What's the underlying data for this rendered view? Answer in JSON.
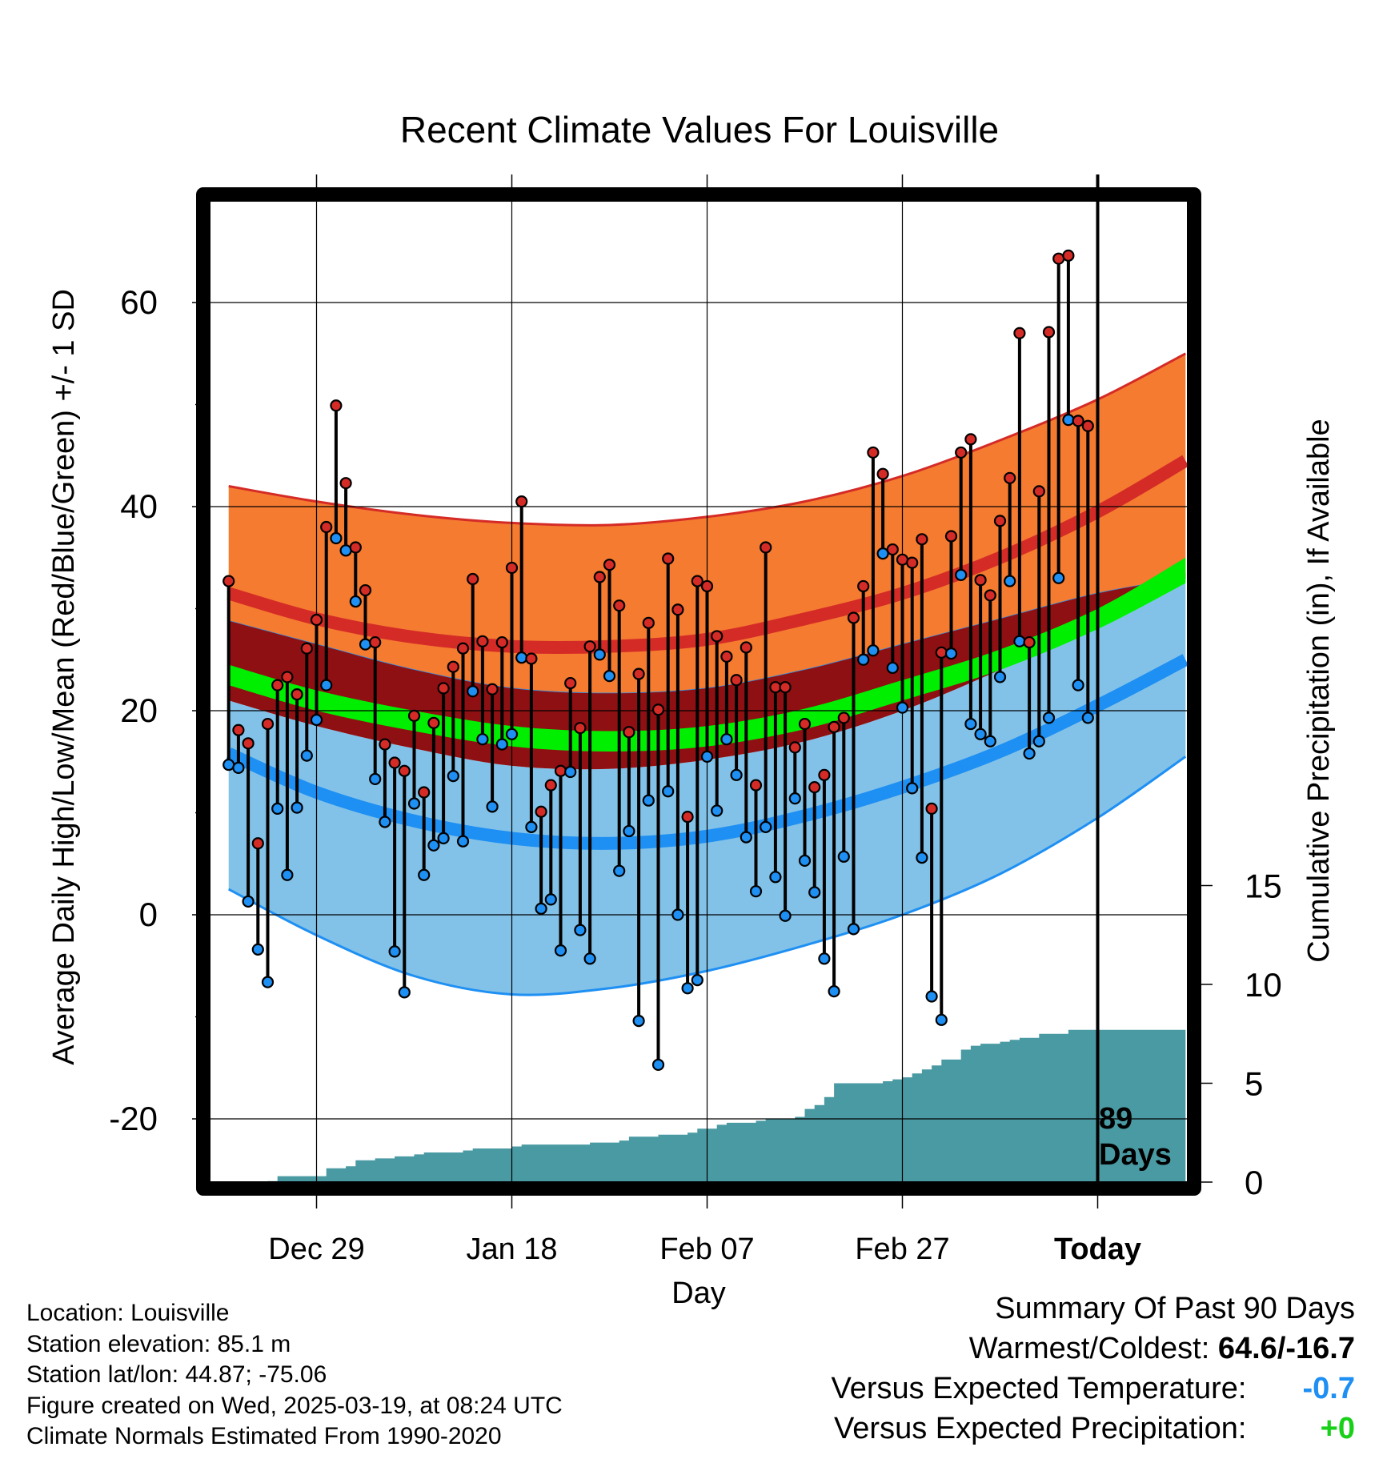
{
  "title": "Recent Climate Values For Louisville",
  "x_axis": {
    "label": "Day",
    "ticks": [
      "Dec 29",
      "Jan 18",
      "Feb 07",
      "Feb 27",
      "Today"
    ]
  },
  "y_axis_left": {
    "label": "Average Daily High/Low/Mean (Red/Blue/Green) +/- 1 SD",
    "ticks": [
      "60",
      "40",
      "20",
      "0",
      "-20"
    ]
  },
  "y_axis_right": {
    "label": "Cumulative Precipitation (in), If Available",
    "ticks": [
      "15",
      "10",
      "5",
      "0"
    ]
  },
  "today_marker": {
    "line1": "89",
    "line2": "Days"
  },
  "info": {
    "location": "Location: Louisville",
    "elevation": "Station elevation: 85.1 m",
    "latlon": "Station lat/lon: 44.87; -75.06",
    "created": "Figure created on Wed, 2025-03-19, at 08:24 UTC",
    "normals": "Climate Normals Estimated From 1990-2020"
  },
  "summary": {
    "heading": "Summary Of Past 90 Days",
    "warm_cold_label": "Warmest/Coldest:",
    "warm_cold_value": "64.6/-16.7",
    "temp_label": "Versus Expected Temperature:",
    "temp_value": "-0.7",
    "precip_label": "Versus Expected Precipitation:",
    "precip_value": "+0"
  },
  "colors": {
    "high_band": "#f47b30",
    "high_mean": "#d52b27",
    "low_band": "#82c2e8",
    "low_mean": "#1e8ff3",
    "mean_band": "#8e1013",
    "mean_line": "#00ee00",
    "precip": "#4a9aa3",
    "high_point": "#d52b27",
    "low_point": "#1e8ff3",
    "temp_value": "#1e8ff3",
    "precip_value": "#18d018"
  },
  "chart_data": {
    "type": "line",
    "x_unit": "day offset from Today (0 = Today)",
    "x_start": -89,
    "x_end": 9,
    "tick_offsets": [
      -80,
      -60,
      -40,
      -20,
      0
    ],
    "ylim": [
      -26,
      70
    ],
    "precip_ylim": [
      0,
      30
    ],
    "normals": {
      "x": [
        -89,
        -80,
        -70,
        -60,
        -50,
        -40,
        -30,
        -20,
        -10,
        0,
        9
      ],
      "high_upper": [
        42.0,
        40.5,
        39.2,
        38.4,
        38.2,
        39.0,
        40.5,
        43.0,
        46.5,
        50.5,
        55.0
      ],
      "high_mean": [
        31.5,
        29.0,
        27.2,
        26.3,
        26.3,
        27.0,
        29.0,
        31.5,
        35.0,
        39.5,
        44.5
      ],
      "high_lower": [
        28.8,
        26.5,
        24.0,
        22.2,
        21.7,
        22.2,
        24.0,
        26.5,
        29.0,
        31.5,
        33.0
      ],
      "mean_upper": [
        24.5,
        22.0,
        20.0,
        18.5,
        18.0,
        18.5,
        20.2,
        23.0,
        26.0,
        30.0,
        35.0
      ],
      "mean_lower": [
        22.5,
        20.0,
        18.0,
        16.5,
        16.0,
        16.5,
        18.2,
        21.0,
        24.0,
        28.0,
        32.5
      ],
      "low_upper": [
        21.0,
        18.5,
        16.3,
        14.6,
        14.3,
        15.2,
        17.0,
        20.0,
        24.0,
        28.5,
        33.5
      ],
      "low_mean": [
        15.8,
        12.0,
        9.2,
        7.5,
        7.0,
        7.7,
        9.7,
        12.5,
        16.0,
        20.5,
        25.0
      ],
      "low_lower": [
        2.5,
        -2.0,
        -6.0,
        -7.8,
        -7.2,
        -5.5,
        -3.0,
        0.0,
        4.0,
        9.5,
        15.5
      ]
    },
    "daily": {
      "x": [
        -89,
        -88,
        -87,
        -86,
        -85,
        -84,
        -83,
        -82,
        -81,
        -80,
        -79,
        -78,
        -77,
        -76,
        -75,
        -74,
        -73,
        -72,
        -71,
        -70,
        -69,
        -68,
        -67,
        -66,
        -65,
        -64,
        -63,
        -62,
        -61,
        -60,
        -59,
        -58,
        -57,
        -56,
        -55,
        -54,
        -53,
        -52,
        -51,
        -50,
        -49,
        -48,
        -47,
        -46,
        -45,
        -44,
        -43,
        -42,
        -41,
        -40,
        -39,
        -38,
        -37,
        -36,
        -35,
        -34,
        -33,
        -32,
        -31,
        -30,
        -29,
        -28,
        -27,
        -26,
        -25,
        -24,
        -23,
        -22,
        -21,
        -20,
        -19,
        -18,
        -17,
        -16,
        -15,
        -14,
        -13,
        -12,
        -11,
        -10,
        -9,
        -8,
        -7,
        -6,
        -5,
        -4,
        -3,
        -2,
        -1
      ],
      "high": [
        32.7,
        18.1,
        16.8,
        7.0,
        18.7,
        22.5,
        23.3,
        21.6,
        26.1,
        28.9,
        38.0,
        49.9,
        42.3,
        36.0,
        31.8,
        26.7,
        16.7,
        14.9,
        14.1,
        19.5,
        12.0,
        18.8,
        22.2,
        24.3,
        26.1,
        32.9,
        26.8,
        22.1,
        26.7,
        34.0,
        40.5,
        25.1,
        10.1,
        12.7,
        14.1,
        22.7,
        18.3,
        26.3,
        33.1,
        34.3,
        30.3,
        17.9,
        23.6,
        28.6,
        20.1,
        34.9,
        29.9,
        9.6,
        32.7,
        32.2,
        27.3,
        25.3,
        23.0,
        26.2,
        12.7,
        36.0,
        22.3,
        22.3,
        16.4,
        18.7,
        12.5,
        13.7,
        18.4,
        19.3,
        29.1,
        32.2,
        45.3,
        43.2,
        35.8,
        34.8,
        34.5,
        36.8,
        10.4,
        25.7,
        37.1,
        45.3,
        46.6,
        32.8,
        31.3,
        38.6,
        42.8,
        57.0,
        26.7,
        41.5,
        57.1,
        64.3,
        64.6,
        48.4,
        47.9
      ],
      "low": [
        14.7,
        14.4,
        1.3,
        -3.4,
        -6.6,
        10.4,
        3.9,
        10.5,
        15.6,
        19.1,
        22.5,
        36.9,
        35.7,
        30.7,
        26.5,
        13.3,
        9.1,
        -3.6,
        -7.6,
        10.9,
        3.9,
        6.8,
        7.5,
        13.6,
        7.2,
        21.9,
        17.2,
        10.6,
        16.7,
        17.7,
        25.2,
        8.6,
        0.6,
        1.5,
        -3.5,
        14.0,
        -1.5,
        -4.3,
        25.5,
        23.4,
        4.3,
        8.2,
        -10.4,
        11.2,
        -14.7,
        12.1,
        0.0,
        -7.2,
        -6.4,
        15.5,
        10.2,
        17.2,
        13.7,
        7.6,
        2.3,
        8.6,
        3.7,
        -0.1,
        11.4,
        5.3,
        2.2,
        -4.3,
        -7.5,
        5.7,
        -1.4,
        25.0,
        25.9,
        35.4,
        24.2,
        20.3,
        12.4,
        5.6,
        -8.0,
        -10.3,
        25.6,
        33.3,
        18.7,
        17.7,
        17.0,
        23.3,
        32.7,
        26.8,
        15.8,
        17.0,
        19.3,
        33.0,
        48.5,
        22.5,
        19.3
      ]
    },
    "precip": {
      "x": [
        -89,
        -85,
        -84,
        -80,
        -79,
        -77,
        -76,
        -74,
        -72,
        -70,
        -69,
        -68,
        -65,
        -64,
        -61,
        -60,
        -59,
        -53,
        -52,
        -49,
        -48,
        -45,
        -44,
        -42,
        -41,
        -39,
        -38,
        -35,
        -34,
        -33,
        -32,
        -31,
        -30,
        -29,
        -28,
        -27,
        -26,
        -24,
        -23,
        -22,
        -21,
        -20,
        -19,
        -18,
        -17,
        -16,
        -15,
        -14,
        -13,
        -12,
        -11,
        -10,
        -9,
        -8,
        -7,
        -6,
        -5,
        -4,
        -3,
        -2,
        -1,
        0,
        9
      ],
      "cumulative": [
        0.0,
        0.05,
        0.3,
        0.3,
        0.7,
        0.8,
        1.1,
        1.2,
        1.3,
        1.4,
        1.5,
        1.5,
        1.6,
        1.7,
        1.7,
        1.8,
        1.9,
        1.9,
        2.0,
        2.1,
        2.3,
        2.4,
        2.4,
        2.5,
        2.7,
        2.9,
        3.0,
        3.1,
        3.2,
        3.2,
        3.2,
        3.3,
        3.7,
        3.9,
        4.3,
        5.0,
        5.0,
        5.0,
        5.0,
        5.1,
        5.2,
        5.3,
        5.5,
        5.7,
        5.9,
        6.2,
        6.2,
        6.7,
        6.9,
        7.0,
        7.0,
        7.1,
        7.2,
        7.3,
        7.3,
        7.5,
        7.5,
        7.5,
        7.7,
        7.7,
        7.7,
        7.7,
        7.7
      ]
    }
  }
}
